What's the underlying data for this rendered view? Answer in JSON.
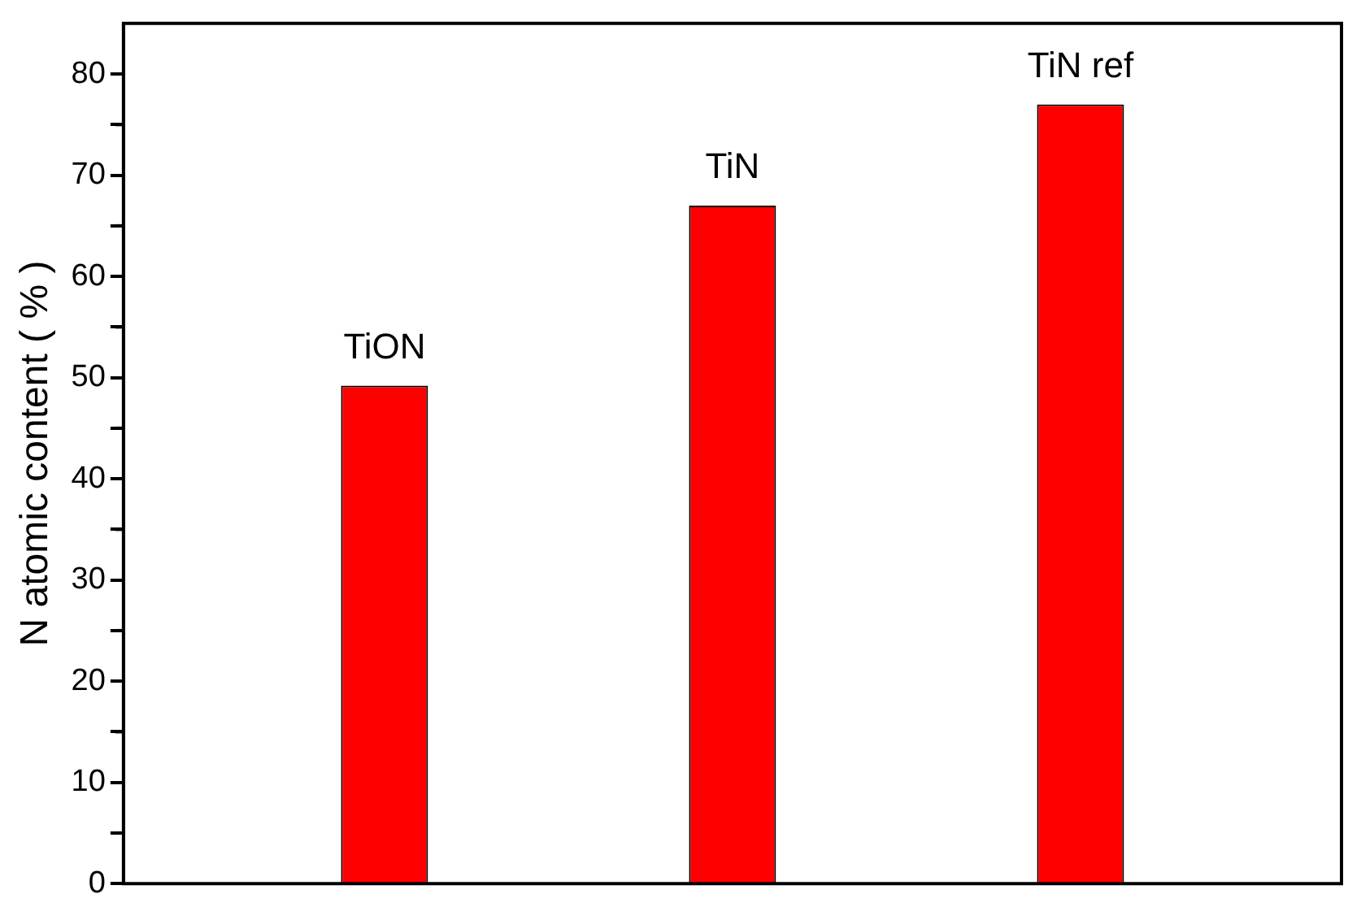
{
  "chart_data": {
    "type": "bar",
    "ylabel": "N atomic content ( % )",
    "categories": [
      null,
      null,
      null
    ],
    "values": [
      49.2,
      67,
      77
    ],
    "value_labels": [
      "TiON",
      "TiN",
      "TiN ref"
    ],
    "tick_labels": "y",
    "color": "#ff0000",
    "ylim": [
      0,
      85
    ],
    "yticks": [
      0,
      {
        "value": 5,
        "label": null
      },
      10,
      {
        "value": 15,
        "label": null
      },
      20,
      {
        "value": 25,
        "label": null
      },
      30,
      {
        "value": 35,
        "label": null
      },
      40,
      {
        "value": 45,
        "label": null
      },
      50,
      {
        "value": 55,
        "label": null
      },
      60,
      {
        "value": 65,
        "label": null
      },
      70,
      {
        "value": 75,
        "label": null
      },
      80
    ],
    "grid": false,
    "legend": false
  }
}
